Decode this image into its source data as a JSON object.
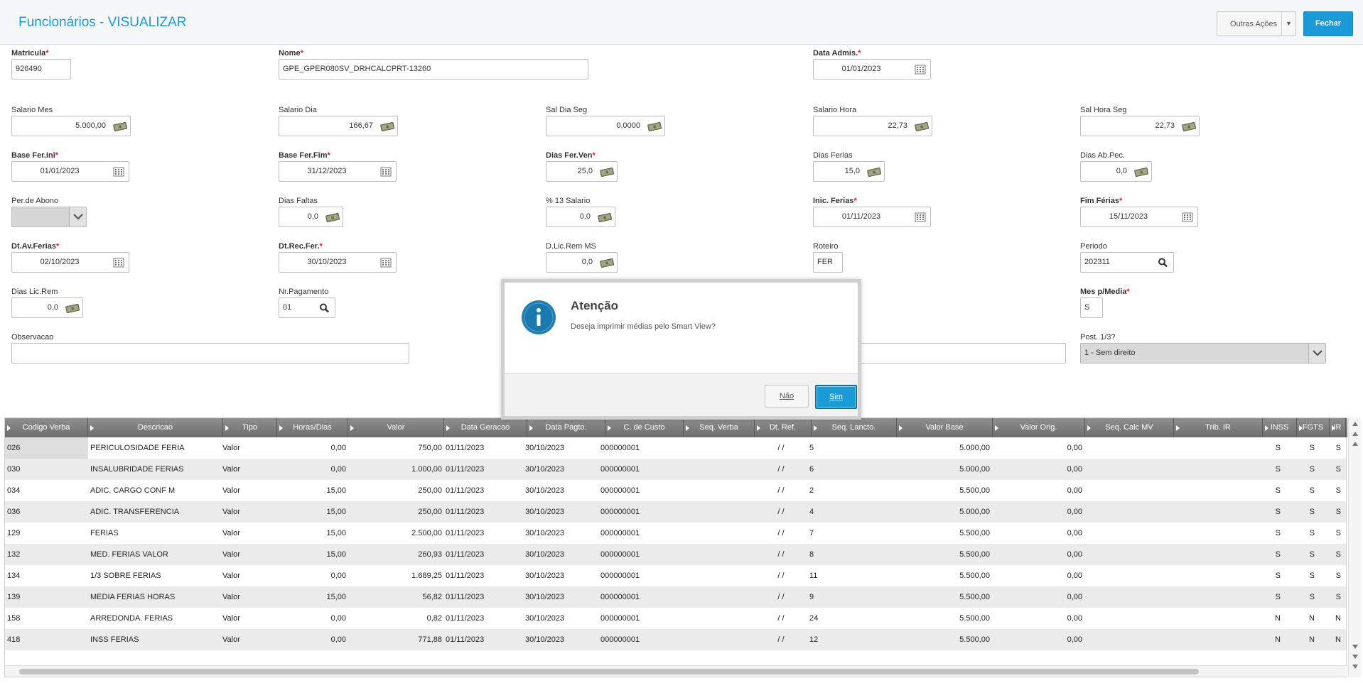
{
  "header": {
    "title": "Funcionários - VISUALIZAR",
    "outras_acoes": "Outras Ações",
    "fechar": "Fechar"
  },
  "fields": {
    "matricula": {
      "label": "Matricula",
      "value": "926490"
    },
    "nome": {
      "label": "Nome",
      "value": "GPE_GPER080SV_DRHCALCPRT-13260"
    },
    "data_admis": {
      "label": "Data Admis.",
      "value": "01/01/2023"
    },
    "salario_mes": {
      "label": "Salario Mes",
      "value": "5.000,00"
    },
    "salario_dia": {
      "label": "Salario Dia",
      "value": "166,67"
    },
    "sal_dia_seg": {
      "label": "Sal Dia Seg",
      "value": "0,0000"
    },
    "salario_hora": {
      "label": "Salario Hora",
      "value": "22,73"
    },
    "sal_hora_seg": {
      "label": "Sal Hora Seg",
      "value": "22,73"
    },
    "base_fer_ini": {
      "label": "Base Fer.Ini",
      "value": "01/01/2023"
    },
    "base_fer_fim": {
      "label": "Base Fer.Fim",
      "value": "31/12/2023"
    },
    "dias_fer_ven": {
      "label": "Dias Fer.Ven",
      "value": "25,0"
    },
    "dias_ferias": {
      "label": "Dias Ferias",
      "value": "15,0"
    },
    "dias_ab_pec": {
      "label": "Dias Ab.Pec.",
      "value": "0,0"
    },
    "per_abono": {
      "label": "Per.de Abono",
      "value": ""
    },
    "dias_faltas": {
      "label": "Dias Faltas",
      "value": "0,0"
    },
    "pct_13_salario": {
      "label": "% 13 Salario",
      "value": "0,0"
    },
    "inic_ferias": {
      "label": "Inic. Ferias",
      "value": "01/11/2023"
    },
    "fim_ferias": {
      "label": "Fim Férias",
      "value": "15/11/2023"
    },
    "dt_av_ferias": {
      "label": "Dt.Av.Ferias",
      "value": "02/10/2023"
    },
    "dt_rec_fer": {
      "label": "Dt.Rec.Fer.",
      "value": "30/10/2023"
    },
    "d_lic_rem_ms": {
      "label": "D.Lic.Rem MS",
      "value": "0,0"
    },
    "roteiro": {
      "label": "Roteiro",
      "value": "FER"
    },
    "periodo": {
      "label": "Periodo",
      "value": "202311"
    },
    "dias_lic_rem": {
      "label": "Dias Lic.Rem",
      "value": "0,0"
    },
    "nr_pagamento": {
      "label": "Nr.Pagamento",
      "value": "01"
    },
    "mes_p_media": {
      "label": "Mes p/Media",
      "value": "S"
    },
    "observacao": {
      "label": "Observacao",
      "value": ""
    },
    "post_1_3": {
      "label": "Post. 1/3?",
      "value": "1 - Sem direito"
    }
  },
  "grid": {
    "columns": [
      "Codigo Verba",
      "Descricao",
      "Tipo",
      "Horas/Dias",
      "Valor",
      "Data Geracao",
      "Data Pagto.",
      "C. de Custo",
      "Seq. Verba",
      "Dt. Ref.",
      "Seq. Lancto.",
      "Valor Base",
      "Valor Orig.",
      "Seq. Calc MV",
      "Trib. IR",
      "INSS",
      "FGTS",
      "IR"
    ],
    "rows": [
      [
        "026",
        "PERICULOSIDADE FERIA",
        "Valor",
        "0,00",
        "750,00",
        "01/11/2023",
        "30/10/2023",
        "000000001",
        "",
        "/  /",
        "5",
        "5.000,00",
        "0,00",
        "",
        "",
        "S",
        "S",
        "S"
      ],
      [
        "030",
        "INSALUBRIDADE FERIAS",
        "Valor",
        "0,00",
        "1.000,00",
        "01/11/2023",
        "30/10/2023",
        "000000001",
        "",
        "/  /",
        "6",
        "5.000,00",
        "0,00",
        "",
        "",
        "S",
        "S",
        "S"
      ],
      [
        "034",
        "ADIC. CARGO CONF M",
        "Valor",
        "15,00",
        "250,00",
        "01/11/2023",
        "30/10/2023",
        "000000001",
        "",
        "/  /",
        "2",
        "5.500,00",
        "0,00",
        "",
        "",
        "S",
        "S",
        "S"
      ],
      [
        "036",
        "ADIC. TRANSFERENCIA",
        "Valor",
        "15,00",
        "250,00",
        "01/11/2023",
        "30/10/2023",
        "000000001",
        "",
        "/  /",
        "4",
        "5.000,00",
        "0,00",
        "",
        "",
        "S",
        "S",
        "S"
      ],
      [
        "129",
        "FERIAS",
        "Valor",
        "15,00",
        "2.500,00",
        "01/11/2023",
        "30/10/2023",
        "000000001",
        "",
        "/  /",
        "7",
        "5.500,00",
        "0,00",
        "",
        "",
        "S",
        "S",
        "S"
      ],
      [
        "132",
        "MED. FERIAS VALOR",
        "Valor",
        "15,00",
        "260,93",
        "01/11/2023",
        "30/10/2023",
        "000000001",
        "",
        "/  /",
        "8",
        "5.500,00",
        "0,00",
        "",
        "",
        "S",
        "S",
        "S"
      ],
      [
        "134",
        "1/3 SOBRE FERIAS",
        "Valor",
        "0,00",
        "1.689,25",
        "01/11/2023",
        "30/10/2023",
        "000000001",
        "",
        "/  /",
        "11",
        "5.500,00",
        "0,00",
        "",
        "",
        "S",
        "S",
        "S"
      ],
      [
        "139",
        "MEDIA FERIAS HORAS",
        "Valor",
        "15,00",
        "56,82",
        "01/11/2023",
        "30/10/2023",
        "000000001",
        "",
        "/  /",
        "9",
        "5.500,00",
        "0,00",
        "",
        "",
        "S",
        "S",
        "S"
      ],
      [
        "158",
        "ARREDONDA. FERIAS",
        "Valor",
        "0,00",
        "0,82",
        "01/11/2023",
        "30/10/2023",
        "000000001",
        "",
        "/  /",
        "24",
        "5.500,00",
        "0,00",
        "",
        "",
        "N",
        "N",
        "N"
      ],
      [
        "418",
        "INSS FERIAS",
        "Valor",
        "0,00",
        "771,88",
        "01/11/2023",
        "30/10/2023",
        "000000001",
        "",
        "/  /",
        "12",
        "5.500,00",
        "0,00",
        "",
        "",
        "N",
        "N",
        "N"
      ]
    ]
  },
  "dialog": {
    "title": "Atenção",
    "message": "Deseja imprimir médias pelo Smart View?",
    "no_label": "Não",
    "yes_label": "Sim"
  },
  "icons": {
    "calendar": "calendar-icon",
    "money": "money-icon",
    "search": "search-icon",
    "info": "info-icon",
    "dropdown": "chevron-down-icon"
  },
  "colors": {
    "accent": "#1a9ad7",
    "required": "#e02020",
    "grid_header": "#7a7a7a"
  }
}
